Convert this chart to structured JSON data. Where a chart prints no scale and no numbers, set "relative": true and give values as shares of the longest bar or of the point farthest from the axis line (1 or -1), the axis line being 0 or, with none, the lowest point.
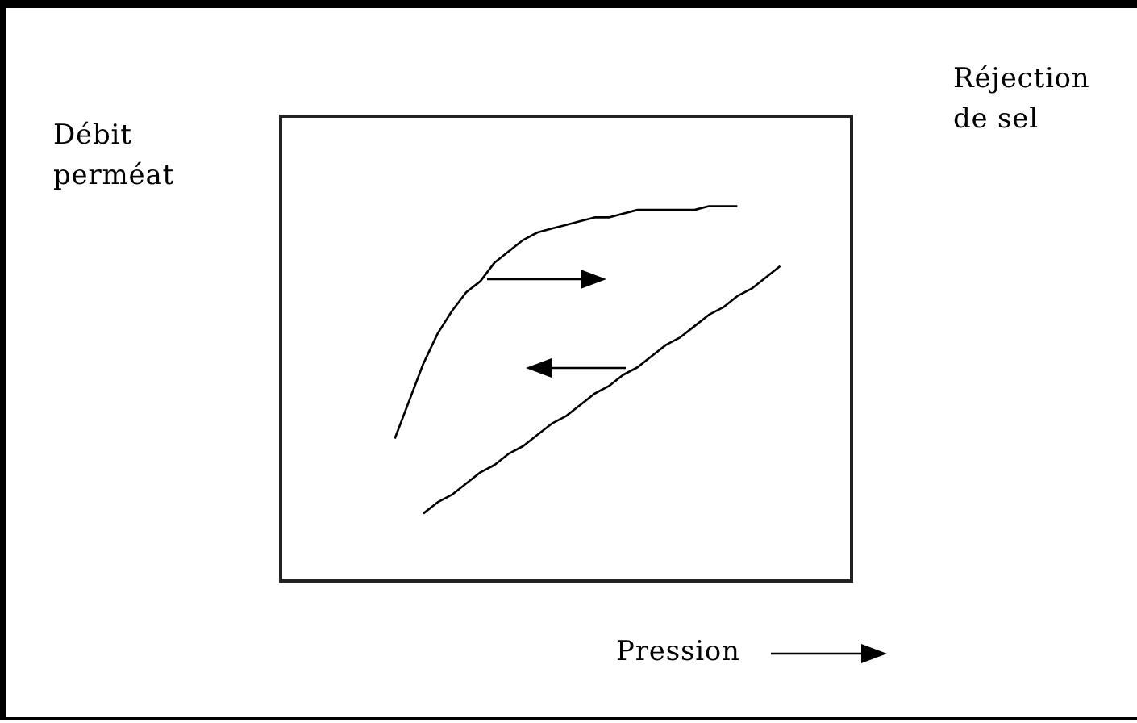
{
  "chart_data": {
    "type": "line",
    "relative": true,
    "xlabel": "Pression",
    "annotations": [
      "Débit perméat",
      "Réjection de sel"
    ],
    "categories": [
      null,
      null,
      null,
      null,
      null,
      null,
      null,
      null,
      null,
      null,
      null,
      null,
      null,
      null,
      null,
      null,
      null,
      null,
      null,
      null,
      null,
      null,
      null,
      null,
      null,
      null,
      null,
      null,
      null,
      null,
      null,
      null,
      null,
      null,
      null,
      null,
      null,
      null,
      null,
      null,
      null
    ],
    "series": [
      {
        "color": "#000000",
        "values": [
          null,
          null,
          null,
          null,
          null,
          null,
          null,
          null,
          0.38,
          0.48,
          0.58,
          0.66,
          0.72,
          0.77,
          0.8,
          0.85,
          0.88,
          0.91,
          0.93,
          0.94,
          0.95,
          0.96,
          0.97,
          0.97,
          0.98,
          0.99,
          0.99,
          0.99,
          0.99,
          0.99,
          1,
          1,
          1,
          null,
          null,
          null,
          null,
          null,
          null,
          null,
          null
        ]
      },
      {
        "color": "#000000",
        "values": [
          null,
          null,
          null,
          null,
          null,
          null,
          null,
          null,
          null,
          null,
          0.18,
          0.21,
          0.23,
          0.26,
          0.29,
          0.31,
          0.34,
          0.36,
          0.39,
          0.42,
          0.44,
          0.47,
          0.5,
          0.52,
          0.55,
          0.57,
          0.6,
          0.63,
          0.65,
          0.68,
          0.71,
          0.73,
          0.76,
          0.78,
          0.81,
          0.84,
          null,
          null,
          null,
          null,
          null
        ]
      }
    ]
  }
}
